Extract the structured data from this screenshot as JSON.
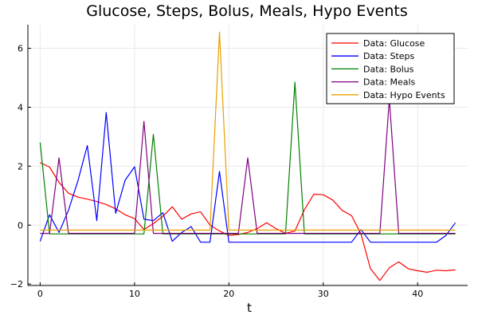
{
  "chart_data": {
    "type": "line",
    "title": "Glucose, Steps, Bolus, Meals, Hypo Events",
    "xlabel": "t",
    "ylabel": "",
    "xlim": [
      -1.3,
      45.3
    ],
    "ylim": [
      -2.05,
      6.8
    ],
    "xticks": [
      0,
      10,
      20,
      30,
      40
    ],
    "yticks": [
      -2,
      0,
      2,
      4,
      6
    ],
    "grid": true,
    "legend_position": "top-right",
    "x": [
      0,
      1,
      2,
      3,
      4,
      5,
      6,
      7,
      8,
      9,
      10,
      11,
      12,
      13,
      14,
      15,
      16,
      17,
      18,
      19,
      20,
      21,
      22,
      23,
      24,
      25,
      26,
      27,
      28,
      29,
      30,
      31,
      32,
      33,
      34,
      35,
      36,
      37,
      38,
      39,
      40,
      41,
      42,
      43,
      44
    ],
    "series": [
      {
        "name": "Data: Glucose",
        "color": "#ff0000",
        "values": [
          2.12,
          1.97,
          1.45,
          1.08,
          0.95,
          0.88,
          0.8,
          0.7,
          0.55,
          0.35,
          0.22,
          -0.15,
          0.05,
          0.3,
          0.62,
          0.2,
          0.38,
          0.45,
          0.0,
          -0.2,
          -0.35,
          -0.32,
          -0.25,
          -0.12,
          0.08,
          -0.12,
          -0.28,
          -0.2,
          0.52,
          1.05,
          1.03,
          0.85,
          0.5,
          0.32,
          -0.3,
          -1.48,
          -1.88,
          -1.45,
          -1.25,
          -1.48,
          -1.55,
          -1.6,
          -1.53,
          -1.55,
          -1.52
        ]
      },
      {
        "name": "Data: Steps",
        "color": "#0000ff",
        "values": [
          -0.55,
          0.35,
          -0.25,
          0.5,
          1.5,
          2.7,
          0.15,
          3.82,
          0.4,
          1.52,
          1.98,
          0.2,
          0.15,
          0.42,
          -0.55,
          -0.25,
          -0.05,
          -0.58,
          -0.58,
          1.82,
          -0.58,
          -0.58,
          -0.58,
          -0.58,
          -0.58,
          -0.58,
          -0.58,
          -0.58,
          -0.58,
          -0.58,
          -0.58,
          -0.58,
          -0.58,
          -0.58,
          -0.15,
          -0.58,
          -0.58,
          -0.58,
          -0.58,
          -0.58,
          -0.58,
          -0.58,
          -0.58,
          -0.35,
          0.08
        ]
      },
      {
        "name": "Data: Bolus",
        "color": "#008000",
        "values": [
          2.8,
          -0.3,
          -0.3,
          -0.3,
          -0.3,
          -0.3,
          -0.3,
          -0.3,
          -0.3,
          -0.3,
          -0.3,
          -0.3,
          3.08,
          -0.3,
          -0.3,
          -0.3,
          -0.3,
          -0.3,
          -0.3,
          -0.3,
          -0.3,
          -0.3,
          -0.3,
          -0.3,
          -0.3,
          -0.3,
          -0.3,
          4.85,
          -0.3,
          -0.3,
          -0.3,
          -0.3,
          -0.3,
          -0.3,
          -0.3,
          -0.3,
          -0.3,
          -0.3,
          -0.3,
          -0.3,
          -0.3,
          -0.3,
          -0.3,
          -0.3,
          -0.3
        ]
      },
      {
        "name": "Data: Meals",
        "color": "#800080",
        "values": [
          -0.28,
          -0.28,
          2.28,
          -0.28,
          -0.28,
          -0.28,
          -0.28,
          -0.28,
          -0.28,
          -0.28,
          -0.28,
          3.52,
          -0.28,
          -0.28,
          -0.28,
          -0.28,
          -0.28,
          -0.28,
          -0.28,
          -0.28,
          -0.28,
          -0.28,
          2.28,
          -0.28,
          -0.28,
          -0.28,
          -0.28,
          -0.28,
          -0.28,
          -0.28,
          -0.28,
          -0.28,
          -0.28,
          -0.28,
          -0.28,
          -0.28,
          -0.28,
          4.28,
          -0.28,
          -0.28,
          -0.28,
          -0.28,
          -0.28,
          -0.28,
          -0.28
        ]
      },
      {
        "name": "Data: Hypo Events",
        "color": "#e6a000",
        "values": [
          -0.17,
          -0.17,
          -0.17,
          -0.17,
          -0.17,
          -0.17,
          -0.17,
          -0.17,
          -0.17,
          -0.17,
          -0.17,
          -0.17,
          -0.17,
          -0.17,
          -0.17,
          -0.17,
          -0.17,
          -0.17,
          -0.17,
          6.55,
          -0.17,
          -0.17,
          -0.17,
          -0.17,
          -0.17,
          -0.17,
          -0.17,
          -0.17,
          -0.17,
          -0.17,
          -0.17,
          -0.17,
          -0.17,
          -0.17,
          -0.17,
          -0.17,
          -0.17,
          -0.17,
          -0.17,
          -0.17,
          -0.17,
          -0.17,
          -0.17,
          -0.17,
          -0.17
        ]
      }
    ]
  }
}
